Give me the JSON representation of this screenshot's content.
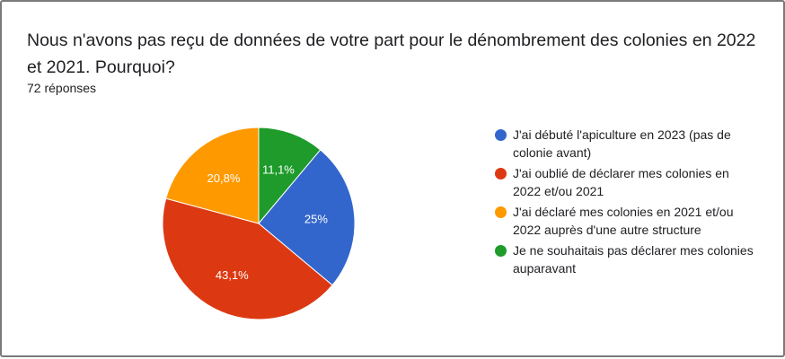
{
  "card": {
    "title": "Nous n'avons pas reçu de données de votre part pour le dénombrement des colonies en 2022 et 2021. Pourquoi?",
    "responses": "72 réponses"
  },
  "chart_data": {
    "type": "pie",
    "title": "Nous n'avons pas reçu de données de votre part pour le dénombrement des colonies en 2022 et 2021. Pourquoi?",
    "total_responses": 72,
    "start": "12 o'clock, clockwise",
    "slices": [
      {
        "label": "Je ne souhaitais pas déclarer mes colonies auparavant",
        "value": 11.1,
        "display": "11,1%",
        "color": "#1e9b2b"
      },
      {
        "label": "J'ai débuté l'apiculture en 2023 (pas de colonie avant)",
        "value": 25,
        "display": "25%",
        "color": "#3366cc"
      },
      {
        "label": "J'ai oublié de déclarer mes colonies en 2022 et/ou 2021",
        "value": 43.1,
        "display": "43,1%",
        "color": "#dc3912"
      },
      {
        "label": "J'ai déclaré mes colonies en 2021 et/ou 2022 auprès d'une autre structure",
        "value": 20.8,
        "display": "20,8%",
        "color": "#ff9900"
      }
    ],
    "legend": [
      {
        "label": "J'ai débuté l'apiculture en 2023 (pas de colonie avant)",
        "color": "#3366cc"
      },
      {
        "label": "J'ai oublié de déclarer mes colonies en 2022 et/ou 2021",
        "color": "#dc3912"
      },
      {
        "label": "J'ai déclaré mes colonies en 2021 et/ou 2022 auprès d'une autre structure",
        "color": "#ff9900"
      },
      {
        "label": "Je ne souhaitais pas déclarer mes colonies auparavant",
        "color": "#1e9b2b"
      }
    ],
    "legend_position": "right"
  }
}
